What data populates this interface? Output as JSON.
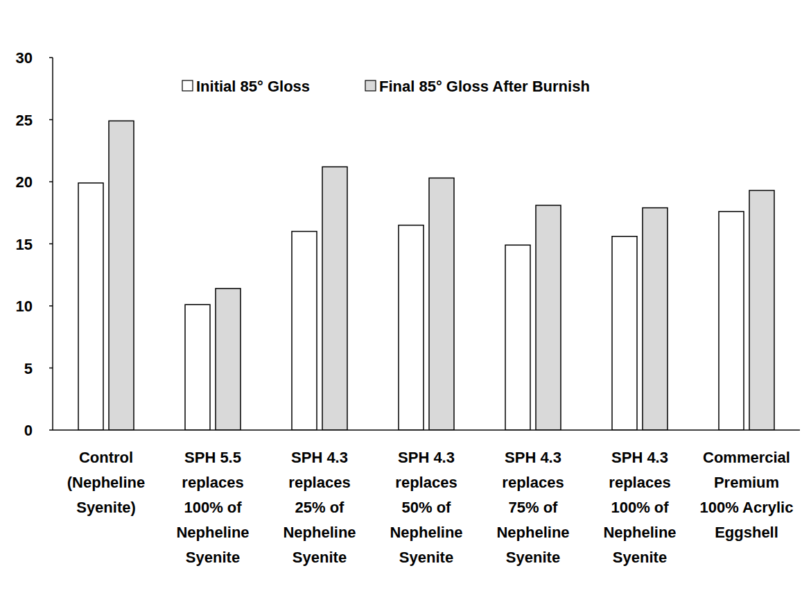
{
  "chart_data": {
    "type": "bar",
    "categories": [
      "Control\n(Nepheline\nSyenite)",
      "SPH 5.5\nreplaces\n100% of\nNepheline\nSyenite",
      "SPH 4.3\nreplaces\n25% of\nNepheline\nSyenite",
      "SPH 4.3\nreplaces\n50% of\nNepheline\nSyenite",
      "SPH 4.3\nreplaces\n75% of\nNepheline\nSyenite",
      "SPH 4.3\nreplaces\n100% of\nNepheline\nSyenite",
      "Commercial\nPremium\n100% Acrylic\nEggshell"
    ],
    "series": [
      {
        "name": "Initial 85° Gloss",
        "color": "#ffffff",
        "values": [
          19.9,
          10.1,
          16.0,
          16.5,
          14.9,
          15.6,
          17.6
        ]
      },
      {
        "name": "Final 85° Gloss After Burnish",
        "color": "#d9d9d9",
        "values": [
          24.9,
          11.4,
          21.2,
          20.3,
          18.1,
          17.9,
          19.3
        ]
      }
    ],
    "ylim": [
      0,
      30
    ],
    "yticks": [
      0,
      5,
      10,
      15,
      20,
      25,
      30
    ],
    "grid": false,
    "legend": "top"
  }
}
